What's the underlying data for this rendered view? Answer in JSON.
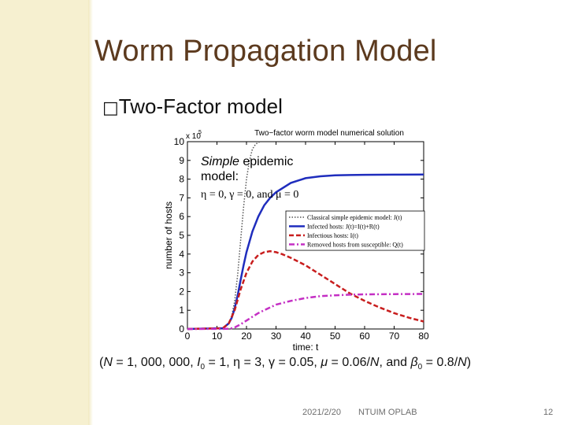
{
  "slide": {
    "title": "Worm Propagation Model",
    "bullet_icon": "□",
    "bullet_text": "Two-Factor model",
    "overlay": {
      "line1_italic": "Simple",
      "line1_rest": " epidemic",
      "line2": "model:",
      "params": "η = 0, γ = 0, and μ = 0"
    },
    "parameters": {
      "prefix": "(",
      "N": "N",
      "N_value": " = 1, 000, 000, ",
      "I": "I",
      "I_sub": "0",
      "I_value": " = 1, η = 3, γ = 0.05, ",
      "mu": "μ",
      "mu_value": " = 0.06/",
      "mu_unit": "N",
      "beta_text": ", and ",
      "beta": "β",
      "beta_sub": "0",
      "beta_value": " = 0.8/",
      "beta_unit": "N",
      "suffix": ")"
    },
    "footer": {
      "date": "2021/2/20",
      "org": "NTUIM OPLAB",
      "page": "12"
    }
  },
  "chart_data": {
    "type": "line",
    "title": "Two−factor worm model numerical solution",
    "xlabel": "time: t",
    "ylabel": "number of hosts",
    "y_multiplier": "× 10^5",
    "y_multiplier_base": "x 10",
    "y_multiplier_exp": "5",
    "xlim": [
      0,
      80
    ],
    "ylim": [
      0,
      10
    ],
    "xticks": [
      0,
      10,
      20,
      30,
      40,
      50,
      60,
      70,
      80
    ],
    "yticks": [
      0,
      1,
      2,
      3,
      4,
      5,
      6,
      7,
      8,
      9,
      10
    ],
    "legend_position": "right",
    "series": [
      {
        "name": "Classical simple epidemic model: J(t)",
        "color": "#555555",
        "style": "dotted",
        "x": [
          0,
          10,
          12,
          14,
          15,
          16,
          17,
          18,
          19,
          20,
          21,
          22,
          23,
          24,
          25
        ],
        "y": [
          0,
          0.01,
          0.06,
          0.3,
          0.7,
          1.5,
          2.9,
          4.7,
          6.5,
          8.0,
          9.0,
          9.6,
          9.85,
          9.97,
          10
        ]
      },
      {
        "name": "Infected hosts: J(t)=I(t)+R(t)",
        "color": "#1f2dbd",
        "style": "solid",
        "x": [
          0,
          12,
          14,
          15,
          16,
          17,
          18,
          19,
          20,
          22,
          24,
          26,
          28,
          30,
          35,
          40,
          45,
          50,
          55,
          60,
          70,
          80
        ],
        "y": [
          0,
          0.04,
          0.3,
          0.6,
          1.1,
          1.8,
          2.6,
          3.4,
          4.1,
          5.2,
          6.0,
          6.6,
          7.0,
          7.3,
          7.8,
          8.05,
          8.15,
          8.2,
          8.22,
          8.23,
          8.24,
          8.25
        ]
      },
      {
        "name": "Infectious hosts: I(t)",
        "color": "#c81e1e",
        "style": "dashed",
        "x": [
          0,
          12,
          14,
          16,
          18,
          20,
          22,
          24,
          26,
          28,
          30,
          32,
          35,
          40,
          45,
          50,
          55,
          60,
          65,
          70,
          75,
          80
        ],
        "y": [
          0,
          0.04,
          0.3,
          1.0,
          2.1,
          3.0,
          3.6,
          3.95,
          4.1,
          4.15,
          4.1,
          4.0,
          3.8,
          3.4,
          2.9,
          2.4,
          1.9,
          1.5,
          1.15,
          0.85,
          0.6,
          0.4
        ]
      },
      {
        "name": "Removed hosts from susceptible: Q(t)",
        "color": "#c42fc4",
        "style": "dashdot",
        "x": [
          0,
          14,
          16,
          18,
          20,
          22,
          24,
          26,
          28,
          30,
          35,
          40,
          45,
          50,
          55,
          60,
          70,
          80
        ],
        "y": [
          0,
          0.01,
          0.08,
          0.25,
          0.45,
          0.65,
          0.85,
          1.0,
          1.15,
          1.3,
          1.5,
          1.65,
          1.75,
          1.8,
          1.83,
          1.85,
          1.86,
          1.87
        ]
      }
    ]
  }
}
